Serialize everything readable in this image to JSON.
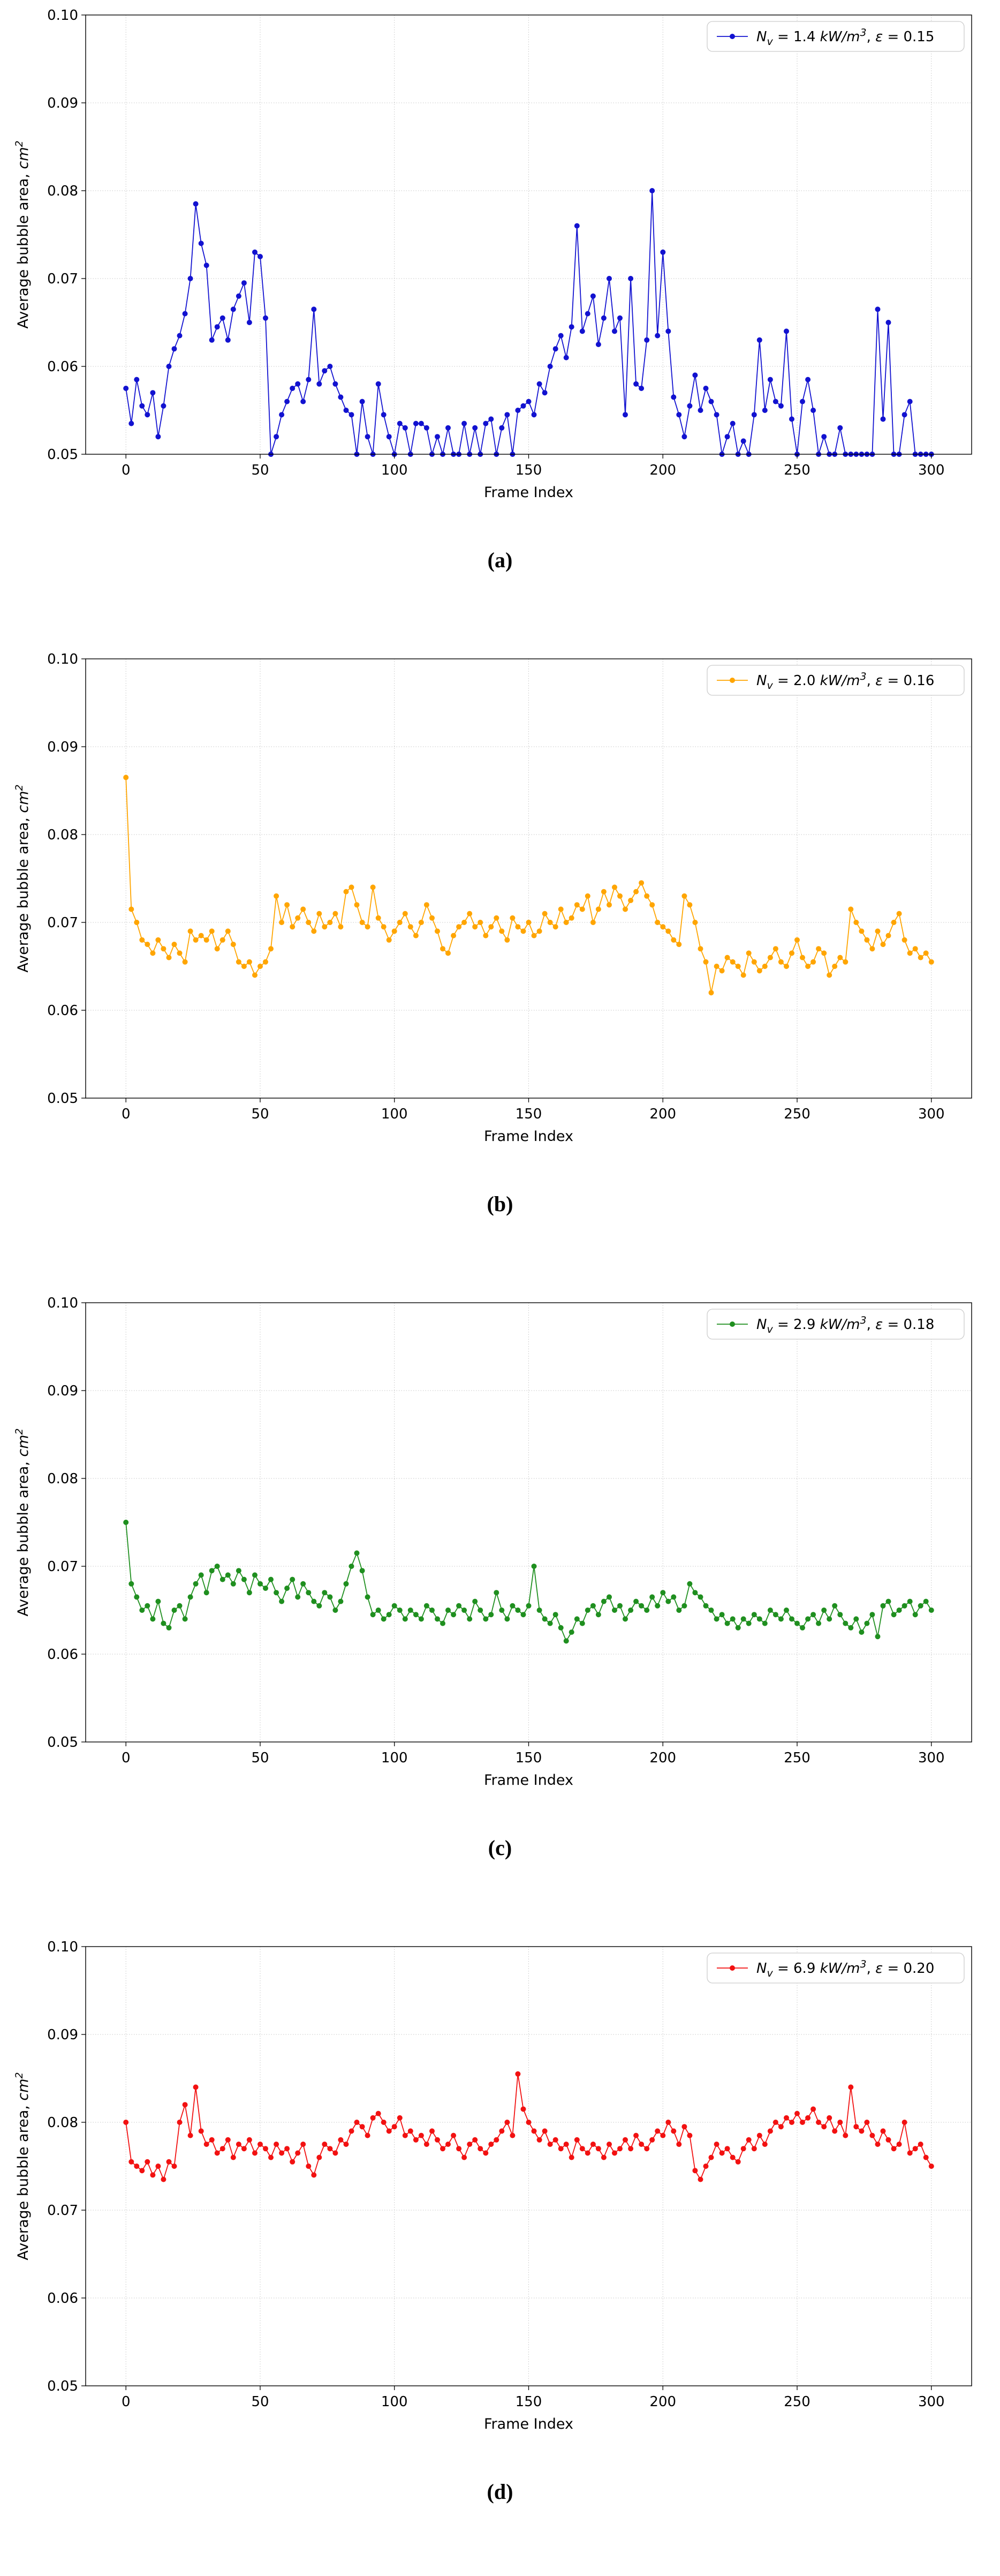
{
  "page": {
    "background": "#ffffff"
  },
  "chart_data": [
    {
      "id": "a",
      "type": "line",
      "caption": "(a)",
      "color": "#1212d0",
      "marker": "circle",
      "legend_label": "N_v = 1.4 kW/m^3, ε = 0.15",
      "legend_runs": [
        {
          "text": "N",
          "style": "italic"
        },
        {
          "text": "v",
          "style": "italic",
          "script": "sub"
        },
        {
          "text": " = 1.4 ",
          "style": "normal"
        },
        {
          "text": "kW/m",
          "style": "italic"
        },
        {
          "text": "3",
          "style": "italic",
          "script": "sup"
        },
        {
          "text": ", ",
          "style": "normal"
        },
        {
          "text": "ε",
          "style": "italic"
        },
        {
          "text": " = 0.15",
          "style": "normal"
        }
      ],
      "xlabel": "Frame Index",
      "ylabel": "Average bubble area, cm^2",
      "ylabel_runs": [
        {
          "text": "Average bubble area, ",
          "style": "normal"
        },
        {
          "text": "cm",
          "style": "italic"
        },
        {
          "text": "2",
          "style": "italic",
          "script": "sup"
        }
      ],
      "xlim": [
        -15,
        315
      ],
      "ylim": [
        0.05,
        0.1
      ],
      "xticks": [
        {
          "v": 0,
          "label": "0"
        },
        {
          "v": 50,
          "label": "50"
        },
        {
          "v": 100,
          "label": "100"
        },
        {
          "v": 150,
          "label": "150"
        },
        {
          "v": 200,
          "label": "200"
        },
        {
          "v": 250,
          "label": "250"
        },
        {
          "v": 300,
          "label": "300"
        }
      ],
      "yticks": [
        {
          "v": 0.05,
          "label": "0.05"
        },
        {
          "v": 0.06,
          "label": "0.06"
        },
        {
          "v": 0.07,
          "label": "0.07"
        },
        {
          "v": 0.08,
          "label": "0.08"
        },
        {
          "v": 0.09,
          "label": "0.09"
        },
        {
          "v": 0.1,
          "label": "0.10"
        }
      ],
      "grid": true,
      "legend_position": "upper right",
      "x_start": 0,
      "x_step": 2,
      "values": [
        0.0575,
        0.0535,
        0.0585,
        0.0555,
        0.0545,
        0.057,
        0.052,
        0.0555,
        0.06,
        0.062,
        0.0635,
        0.066,
        0.07,
        0.0785,
        0.074,
        0.0715,
        0.063,
        0.0645,
        0.0655,
        0.063,
        0.0665,
        0.068,
        0.0695,
        0.065,
        0.073,
        0.0725,
        0.0655,
        0.05,
        0.052,
        0.0545,
        0.056,
        0.0575,
        0.058,
        0.056,
        0.0585,
        0.0665,
        0.058,
        0.0595,
        0.06,
        0.058,
        0.0565,
        0.055,
        0.0545,
        0.05,
        0.056,
        0.052,
        0.05,
        0.058,
        0.0545,
        0.052,
        0.05,
        0.0535,
        0.053,
        0.05,
        0.0535,
        0.0535,
        0.053,
        0.05,
        0.052,
        0.05,
        0.053,
        0.05,
        0.05,
        0.0535,
        0.05,
        0.053,
        0.05,
        0.0535,
        0.054,
        0.05,
        0.053,
        0.0545,
        0.05,
        0.055,
        0.0555,
        0.056,
        0.0545,
        0.058,
        0.057,
        0.06,
        0.062,
        0.0635,
        0.061,
        0.0645,
        0.076,
        0.064,
        0.066,
        0.068,
        0.0625,
        0.0655,
        0.07,
        0.064,
        0.0655,
        0.0545,
        0.07,
        0.058,
        0.0575,
        0.063,
        0.08,
        0.0635,
        0.073,
        0.064,
        0.0565,
        0.0545,
        0.052,
        0.0555,
        0.059,
        0.055,
        0.0575,
        0.056,
        0.0545,
        0.05,
        0.052,
        0.0535,
        0.05,
        0.0515,
        0.05,
        0.0545,
        0.063,
        0.055,
        0.0585,
        0.056,
        0.0555,
        0.064,
        0.054,
        0.05,
        0.056,
        0.0585,
        0.055,
        0.05,
        0.052,
        0.05,
        0.05,
        0.053,
        0.05,
        0.05,
        0.05,
        0.05,
        0.05,
        0.05,
        0.0665,
        0.054,
        0.065,
        0.05,
        0.05,
        0.0545,
        0.056,
        0.05,
        0.05,
        0.05,
        0.05
      ]
    },
    {
      "id": "b",
      "type": "line",
      "caption": "(b)",
      "color": "#ffa500",
      "marker": "circle",
      "legend_label": "N_v = 2.0 kW/m^3, ε = 0.16",
      "legend_runs": [
        {
          "text": "N",
          "style": "italic"
        },
        {
          "text": "v",
          "style": "italic",
          "script": "sub"
        },
        {
          "text": " = 2.0 ",
          "style": "normal"
        },
        {
          "text": "kW/m",
          "style": "italic"
        },
        {
          "text": "3",
          "style": "italic",
          "script": "sup"
        },
        {
          "text": ", ",
          "style": "normal"
        },
        {
          "text": "ε",
          "style": "italic"
        },
        {
          "text": " = 0.16",
          "style": "normal"
        }
      ],
      "xlabel": "Frame Index",
      "ylabel": "Average bubble area, cm^2",
      "ylabel_runs": [
        {
          "text": "Average bubble area, ",
          "style": "normal"
        },
        {
          "text": "cm",
          "style": "italic"
        },
        {
          "text": "2",
          "style": "italic",
          "script": "sup"
        }
      ],
      "xlim": [
        -15,
        315
      ],
      "ylim": [
        0.05,
        0.1
      ],
      "xticks": [
        {
          "v": 0,
          "label": "0"
        },
        {
          "v": 50,
          "label": "50"
        },
        {
          "v": 100,
          "label": "100"
        },
        {
          "v": 150,
          "label": "150"
        },
        {
          "v": 200,
          "label": "200"
        },
        {
          "v": 250,
          "label": "250"
        },
        {
          "v": 300,
          "label": "300"
        }
      ],
      "yticks": [
        {
          "v": 0.05,
          "label": "0.05"
        },
        {
          "v": 0.06,
          "label": "0.06"
        },
        {
          "v": 0.07,
          "label": "0.07"
        },
        {
          "v": 0.08,
          "label": "0.08"
        },
        {
          "v": 0.09,
          "label": "0.09"
        },
        {
          "v": 0.1,
          "label": "0.10"
        }
      ],
      "grid": true,
      "legend_position": "upper right",
      "x_start": 0,
      "x_step": 2,
      "values": [
        0.0865,
        0.0715,
        0.07,
        0.068,
        0.0675,
        0.0665,
        0.068,
        0.067,
        0.066,
        0.0675,
        0.0665,
        0.0655,
        0.069,
        0.068,
        0.0685,
        0.068,
        0.069,
        0.067,
        0.068,
        0.069,
        0.0675,
        0.0655,
        0.065,
        0.0655,
        0.064,
        0.065,
        0.0655,
        0.067,
        0.073,
        0.07,
        0.072,
        0.0695,
        0.0705,
        0.0715,
        0.07,
        0.069,
        0.071,
        0.0695,
        0.07,
        0.071,
        0.0695,
        0.0735,
        0.074,
        0.072,
        0.07,
        0.0695,
        0.074,
        0.0705,
        0.0695,
        0.068,
        0.069,
        0.07,
        0.071,
        0.0695,
        0.0685,
        0.07,
        0.072,
        0.0705,
        0.069,
        0.067,
        0.0665,
        0.0685,
        0.0695,
        0.07,
        0.071,
        0.0695,
        0.07,
        0.0685,
        0.0695,
        0.0705,
        0.069,
        0.068,
        0.0705,
        0.0695,
        0.069,
        0.07,
        0.0685,
        0.069,
        0.071,
        0.07,
        0.0695,
        0.0715,
        0.07,
        0.0705,
        0.072,
        0.0715,
        0.073,
        0.07,
        0.0715,
        0.0735,
        0.072,
        0.074,
        0.073,
        0.0715,
        0.0725,
        0.0735,
        0.0745,
        0.073,
        0.072,
        0.07,
        0.0695,
        0.069,
        0.068,
        0.0675,
        0.073,
        0.072,
        0.07,
        0.067,
        0.0655,
        0.062,
        0.065,
        0.0645,
        0.066,
        0.0655,
        0.065,
        0.064,
        0.0665,
        0.0655,
        0.0645,
        0.065,
        0.066,
        0.067,
        0.0655,
        0.065,
        0.0665,
        0.068,
        0.066,
        0.065,
        0.0655,
        0.067,
        0.0665,
        0.064,
        0.065,
        0.066,
        0.0655,
        0.0715,
        0.07,
        0.069,
        0.068,
        0.067,
        0.069,
        0.0675,
        0.0685,
        0.07,
        0.071,
        0.068,
        0.0665,
        0.067,
        0.066,
        0.0665,
        0.0655
      ]
    },
    {
      "id": "c",
      "type": "line",
      "caption": "(c)",
      "color": "#1f8f1f",
      "marker": "circle",
      "legend_label": "N_v = 2.9 kW/m^3, ε = 0.18",
      "legend_runs": [
        {
          "text": "N",
          "style": "italic"
        },
        {
          "text": "v",
          "style": "italic",
          "script": "sub"
        },
        {
          "text": " = 2.9 ",
          "style": "normal"
        },
        {
          "text": "kW/m",
          "style": "italic"
        },
        {
          "text": "3",
          "style": "italic",
          "script": "sup"
        },
        {
          "text": ", ",
          "style": "normal"
        },
        {
          "text": "ε",
          "style": "italic"
        },
        {
          "text": " = 0.18",
          "style": "normal"
        }
      ],
      "xlabel": "Frame Index",
      "ylabel": "Average bubble area, cm^2",
      "ylabel_runs": [
        {
          "text": "Average bubble area, ",
          "style": "normal"
        },
        {
          "text": "cm",
          "style": "italic"
        },
        {
          "text": "2",
          "style": "italic",
          "script": "sup"
        }
      ],
      "xlim": [
        -15,
        315
      ],
      "ylim": [
        0.05,
        0.1
      ],
      "xticks": [
        {
          "v": 0,
          "label": "0"
        },
        {
          "v": 50,
          "label": "50"
        },
        {
          "v": 100,
          "label": "100"
        },
        {
          "v": 150,
          "label": "150"
        },
        {
          "v": 200,
          "label": "200"
        },
        {
          "v": 250,
          "label": "250"
        },
        {
          "v": 300,
          "label": "300"
        }
      ],
      "yticks": [
        {
          "v": 0.05,
          "label": "0.05"
        },
        {
          "v": 0.06,
          "label": "0.06"
        },
        {
          "v": 0.07,
          "label": "0.07"
        },
        {
          "v": 0.08,
          "label": "0.08"
        },
        {
          "v": 0.09,
          "label": "0.09"
        },
        {
          "v": 0.1,
          "label": "0.10"
        }
      ],
      "grid": true,
      "legend_position": "upper right",
      "x_start": 0,
      "x_step": 2,
      "values": [
        0.075,
        0.068,
        0.0665,
        0.065,
        0.0655,
        0.064,
        0.066,
        0.0635,
        0.063,
        0.065,
        0.0655,
        0.064,
        0.0665,
        0.068,
        0.069,
        0.067,
        0.0695,
        0.07,
        0.0685,
        0.069,
        0.068,
        0.0695,
        0.0685,
        0.067,
        0.069,
        0.068,
        0.0675,
        0.0685,
        0.067,
        0.066,
        0.0675,
        0.0685,
        0.0665,
        0.068,
        0.067,
        0.066,
        0.0655,
        0.067,
        0.0665,
        0.065,
        0.066,
        0.068,
        0.07,
        0.0715,
        0.0695,
        0.0665,
        0.0645,
        0.065,
        0.064,
        0.0645,
        0.0655,
        0.065,
        0.064,
        0.065,
        0.0645,
        0.064,
        0.0655,
        0.065,
        0.064,
        0.0635,
        0.065,
        0.0645,
        0.0655,
        0.065,
        0.064,
        0.066,
        0.065,
        0.064,
        0.0645,
        0.067,
        0.065,
        0.064,
        0.0655,
        0.065,
        0.0645,
        0.0655,
        0.07,
        0.065,
        0.064,
        0.0635,
        0.0645,
        0.063,
        0.0615,
        0.0625,
        0.064,
        0.0635,
        0.065,
        0.0655,
        0.0645,
        0.066,
        0.0665,
        0.065,
        0.0655,
        0.064,
        0.065,
        0.066,
        0.0655,
        0.065,
        0.0665,
        0.0655,
        0.067,
        0.066,
        0.0665,
        0.065,
        0.0655,
        0.068,
        0.067,
        0.0665,
        0.0655,
        0.065,
        0.064,
        0.0645,
        0.0635,
        0.064,
        0.063,
        0.064,
        0.0635,
        0.0645,
        0.064,
        0.0635,
        0.065,
        0.0645,
        0.064,
        0.065,
        0.064,
        0.0635,
        0.063,
        0.064,
        0.0645,
        0.0635,
        0.065,
        0.064,
        0.0655,
        0.0645,
        0.0635,
        0.063,
        0.064,
        0.0625,
        0.0635,
        0.0645,
        0.062,
        0.0655,
        0.066,
        0.0645,
        0.065,
        0.0655,
        0.066,
        0.0645,
        0.0655,
        0.066,
        0.065
      ]
    },
    {
      "id": "d",
      "type": "line",
      "caption": "(d)",
      "color": "#f21111",
      "marker": "circle",
      "legend_label": "N_v = 6.9 kW/m^3, ε = 0.20",
      "legend_runs": [
        {
          "text": "N",
          "style": "italic"
        },
        {
          "text": "v",
          "style": "italic",
          "script": "sub"
        },
        {
          "text": " = 6.9 ",
          "style": "normal"
        },
        {
          "text": "kW/m",
          "style": "italic"
        },
        {
          "text": "3",
          "style": "italic",
          "script": "sup"
        },
        {
          "text": ", ",
          "style": "normal"
        },
        {
          "text": "ε",
          "style": "italic"
        },
        {
          "text": " = 0.20",
          "style": "normal"
        }
      ],
      "xlabel": "Frame Index",
      "ylabel": "Average bubble area, cm^2",
      "ylabel_runs": [
        {
          "text": "Average bubble area, ",
          "style": "normal"
        },
        {
          "text": "cm",
          "style": "italic"
        },
        {
          "text": "2",
          "style": "italic",
          "script": "sup"
        }
      ],
      "xlim": [
        -15,
        315
      ],
      "ylim": [
        0.05,
        0.1
      ],
      "xticks": [
        {
          "v": 0,
          "label": "0"
        },
        {
          "v": 50,
          "label": "50"
        },
        {
          "v": 100,
          "label": "100"
        },
        {
          "v": 150,
          "label": "150"
        },
        {
          "v": 200,
          "label": "200"
        },
        {
          "v": 250,
          "label": "250"
        },
        {
          "v": 300,
          "label": "300"
        }
      ],
      "yticks": [
        {
          "v": 0.05,
          "label": "0.05"
        },
        {
          "v": 0.06,
          "label": "0.06"
        },
        {
          "v": 0.07,
          "label": "0.07"
        },
        {
          "v": 0.08,
          "label": "0.08"
        },
        {
          "v": 0.09,
          "label": "0.09"
        },
        {
          "v": 0.1,
          "label": "0.10"
        }
      ],
      "grid": true,
      "legend_position": "upper right",
      "x_start": 0,
      "x_step": 2,
      "values": [
        0.08,
        0.0755,
        0.075,
        0.0745,
        0.0755,
        0.074,
        0.075,
        0.0735,
        0.0755,
        0.075,
        0.08,
        0.082,
        0.0785,
        0.084,
        0.079,
        0.0775,
        0.078,
        0.0765,
        0.077,
        0.078,
        0.076,
        0.0775,
        0.077,
        0.078,
        0.0765,
        0.0775,
        0.077,
        0.076,
        0.0775,
        0.0765,
        0.077,
        0.0755,
        0.0765,
        0.0775,
        0.075,
        0.074,
        0.076,
        0.0775,
        0.077,
        0.0765,
        0.078,
        0.0775,
        0.079,
        0.08,
        0.0795,
        0.0785,
        0.0805,
        0.081,
        0.08,
        0.079,
        0.0795,
        0.0805,
        0.0785,
        0.079,
        0.078,
        0.0785,
        0.0775,
        0.079,
        0.078,
        0.077,
        0.0775,
        0.0785,
        0.077,
        0.076,
        0.0775,
        0.078,
        0.077,
        0.0765,
        0.0775,
        0.078,
        0.079,
        0.08,
        0.0785,
        0.0855,
        0.0815,
        0.08,
        0.079,
        0.078,
        0.079,
        0.0775,
        0.078,
        0.077,
        0.0775,
        0.076,
        0.078,
        0.077,
        0.0765,
        0.0775,
        0.077,
        0.076,
        0.0775,
        0.0765,
        0.077,
        0.078,
        0.077,
        0.0785,
        0.0775,
        0.077,
        0.078,
        0.079,
        0.0785,
        0.08,
        0.079,
        0.0775,
        0.0795,
        0.0785,
        0.0745,
        0.0735,
        0.075,
        0.076,
        0.0775,
        0.0765,
        0.077,
        0.076,
        0.0755,
        0.077,
        0.078,
        0.077,
        0.0785,
        0.0775,
        0.079,
        0.08,
        0.0795,
        0.0805,
        0.08,
        0.081,
        0.08,
        0.0805,
        0.0815,
        0.08,
        0.0795,
        0.0805,
        0.079,
        0.08,
        0.0785,
        0.084,
        0.0795,
        0.079,
        0.08,
        0.0785,
        0.0775,
        0.079,
        0.078,
        0.077,
        0.0775,
        0.08,
        0.0765,
        0.077,
        0.0775,
        0.076,
        0.075
      ]
    }
  ]
}
